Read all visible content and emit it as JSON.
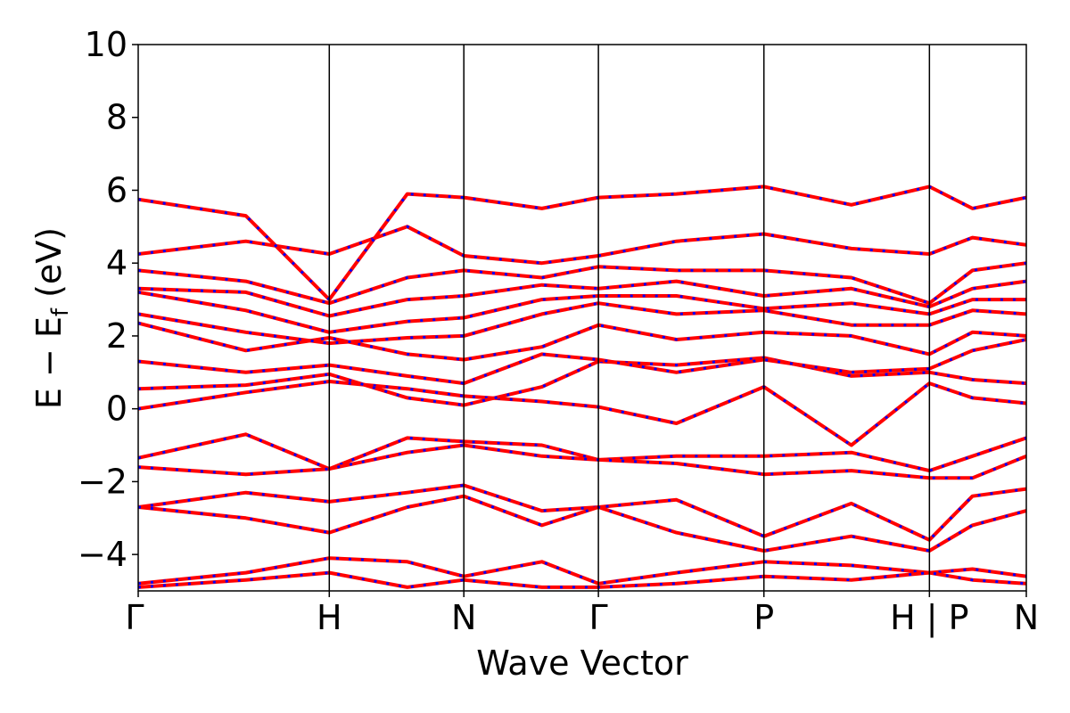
{
  "chart_data": {
    "type": "line",
    "title": "",
    "xlabel": "Wave Vector",
    "ylabel_main": "E − E",
    "ylabel_sub": "f",
    "ylabel_unit": " (eV)",
    "ylim": [
      -5,
      10
    ],
    "yticks": [
      -4,
      -2,
      0,
      2,
      4,
      6,
      8,
      10
    ],
    "ytick_labels": [
      "−4",
      "−2",
      "0",
      "2",
      "4",
      "6",
      "8",
      "10"
    ],
    "xlim": [
      0,
      6.6
    ],
    "kpoint_positions": [
      0,
      1.42,
      2.42,
      3.42,
      4.65,
      5.88,
      6.6
    ],
    "kpoint_labels": [
      "Γ",
      "H",
      "N",
      "Γ",
      "P",
      "H | P",
      "N"
    ],
    "segment_break_at": 5.88,
    "grid": false,
    "legend": "none",
    "colors": {
      "solid": "#ff0000",
      "dashed": "#0000ff"
    },
    "series": [
      {
        "x": [
          0,
          0.8,
          1.42,
          2.0,
          2.42,
          3.0,
          3.42,
          4.0,
          4.65,
          5.3,
          5.88,
          6.2,
          6.6
        ],
        "y": [
          0.0,
          0.45,
          0.75,
          0.55,
          0.35,
          0.2,
          0.05,
          -0.4,
          0.6,
          -1.0,
          0.7,
          0.3,
          0.15
        ]
      },
      {
        "x": [
          0,
          0.8,
          1.42,
          2.0,
          2.42,
          3.0,
          3.42,
          4.0,
          4.65,
          5.3,
          5.88,
          6.2,
          6.6
        ],
        "y": [
          0.55,
          0.65,
          0.95,
          0.3,
          0.1,
          0.6,
          1.3,
          1.2,
          1.4,
          0.9,
          1.0,
          0.8,
          0.7
        ]
      },
      {
        "x": [
          0,
          0.8,
          1.42,
          2.0,
          2.42,
          3.0,
          3.42,
          4.0,
          4.65,
          5.3,
          5.88,
          6.2,
          6.6
        ],
        "y": [
          1.3,
          1.0,
          1.2,
          0.9,
          0.7,
          1.5,
          1.35,
          1.0,
          1.35,
          1.0,
          1.1,
          1.6,
          1.9
        ]
      },
      {
        "x": [
          0,
          0.8,
          1.42,
          2.0,
          2.42,
          3.0,
          3.42,
          4.0,
          4.65,
          5.3,
          5.88,
          6.2,
          6.6
        ],
        "y": [
          2.35,
          1.6,
          1.95,
          1.5,
          1.35,
          1.7,
          2.3,
          1.9,
          2.1,
          2.0,
          1.5,
          2.1,
          2.0
        ]
      },
      {
        "x": [
          0,
          0.8,
          1.42,
          2.0,
          2.42,
          3.0,
          3.42,
          4.0,
          4.65,
          5.3,
          5.88,
          6.2,
          6.6
        ],
        "y": [
          2.6,
          2.1,
          1.8,
          1.95,
          2.0,
          2.6,
          2.9,
          2.6,
          2.7,
          2.3,
          2.3,
          2.7,
          2.6
        ]
      },
      {
        "x": [
          0,
          0.8,
          1.42,
          2.0,
          2.42,
          3.0,
          3.42,
          4.0,
          4.65,
          5.3,
          5.88,
          6.2,
          6.6
        ],
        "y": [
          3.2,
          2.7,
          2.1,
          2.4,
          2.5,
          3.0,
          3.1,
          3.1,
          2.75,
          2.9,
          2.6,
          3.0,
          3.0
        ]
      },
      {
        "x": [
          0,
          0.8,
          1.42,
          2.0,
          2.42,
          3.0,
          3.42,
          4.0,
          4.65,
          5.3,
          5.88,
          6.2,
          6.6
        ],
        "y": [
          3.3,
          3.2,
          2.55,
          3.0,
          3.1,
          3.4,
          3.3,
          3.5,
          3.1,
          3.3,
          2.8,
          3.3,
          3.5
        ]
      },
      {
        "x": [
          0,
          0.8,
          1.42,
          2.0,
          2.42,
          3.0,
          3.42,
          4.0,
          4.65,
          5.3,
          5.88,
          6.2,
          6.6
        ],
        "y": [
          3.8,
          3.5,
          2.9,
          3.6,
          3.8,
          3.6,
          3.9,
          3.8,
          3.8,
          3.6,
          2.9,
          3.8,
          4.0
        ]
      },
      {
        "x": [
          0,
          0.8,
          1.42,
          2.0,
          2.42,
          3.0,
          3.42,
          4.0,
          4.65,
          5.3,
          5.88,
          6.2,
          6.6
        ],
        "y": [
          4.25,
          4.6,
          4.25,
          5.0,
          4.2,
          4.0,
          4.2,
          4.6,
          4.8,
          4.4,
          4.25,
          4.7,
          4.5
        ]
      },
      {
        "x": [
          0,
          0.8,
          1.42,
          2.0,
          2.42,
          3.0,
          3.42,
          4.0,
          4.65,
          5.3,
          5.88,
          6.2,
          6.6
        ],
        "y": [
          5.75,
          5.3,
          3.0,
          5.9,
          5.8,
          5.5,
          5.8,
          5.9,
          6.1,
          5.6,
          6.1,
          5.5,
          5.8
        ]
      },
      {
        "x": [
          0,
          0.8,
          1.42,
          2.0,
          2.42,
          3.0,
          3.42,
          4.0,
          4.65,
          5.3,
          5.88,
          6.2,
          6.6
        ],
        "y": [
          -1.35,
          -0.7,
          -1.65,
          -0.8,
          -0.9,
          -1.0,
          -1.4,
          -1.3,
          -1.3,
          -1.2,
          -1.7,
          -1.3,
          -0.8
        ]
      },
      {
        "x": [
          0,
          0.8,
          1.42,
          2.0,
          2.42,
          3.0,
          3.42,
          4.0,
          4.65,
          5.3,
          5.88,
          6.2,
          6.6
        ],
        "y": [
          -1.6,
          -1.8,
          -1.65,
          -1.2,
          -1.0,
          -1.3,
          -1.4,
          -1.5,
          -1.8,
          -1.7,
          -1.9,
          -1.9,
          -1.3
        ]
      },
      {
        "x": [
          0,
          0.8,
          1.42,
          2.0,
          2.42,
          3.0,
          3.42,
          4.0,
          4.65,
          5.3,
          5.88,
          6.2,
          6.6
        ],
        "y": [
          -2.7,
          -2.3,
          -2.55,
          -2.3,
          -2.1,
          -2.8,
          -2.7,
          -2.5,
          -3.5,
          -2.6,
          -3.6,
          -2.4,
          -2.2
        ]
      },
      {
        "x": [
          0,
          0.8,
          1.42,
          2.0,
          2.42,
          3.0,
          3.42,
          4.0,
          4.65,
          5.3,
          5.88,
          6.2,
          6.6
        ],
        "y": [
          -2.7,
          -3.0,
          -3.4,
          -2.7,
          -2.4,
          -3.2,
          -2.7,
          -3.4,
          -3.9,
          -3.5,
          -3.9,
          -3.2,
          -2.8
        ]
      },
      {
        "x": [
          0,
          0.8,
          1.42,
          2.0,
          2.42,
          3.0,
          3.42,
          4.0,
          4.65,
          5.3,
          5.88,
          6.2,
          6.6
        ],
        "y": [
          -4.8,
          -4.5,
          -4.1,
          -4.2,
          -4.6,
          -4.2,
          -4.8,
          -4.5,
          -4.2,
          -4.3,
          -4.5,
          -4.4,
          -4.6
        ]
      },
      {
        "x": [
          0,
          0.8,
          1.42,
          2.0,
          2.42,
          3.0,
          3.42,
          4.0,
          4.65,
          5.3,
          5.88,
          6.2,
          6.6
        ],
        "y": [
          -4.9,
          -4.7,
          -4.5,
          -4.9,
          -4.7,
          -4.9,
          -4.9,
          -4.8,
          -4.6,
          -4.7,
          -4.5,
          -4.7,
          -4.8
        ]
      }
    ]
  }
}
